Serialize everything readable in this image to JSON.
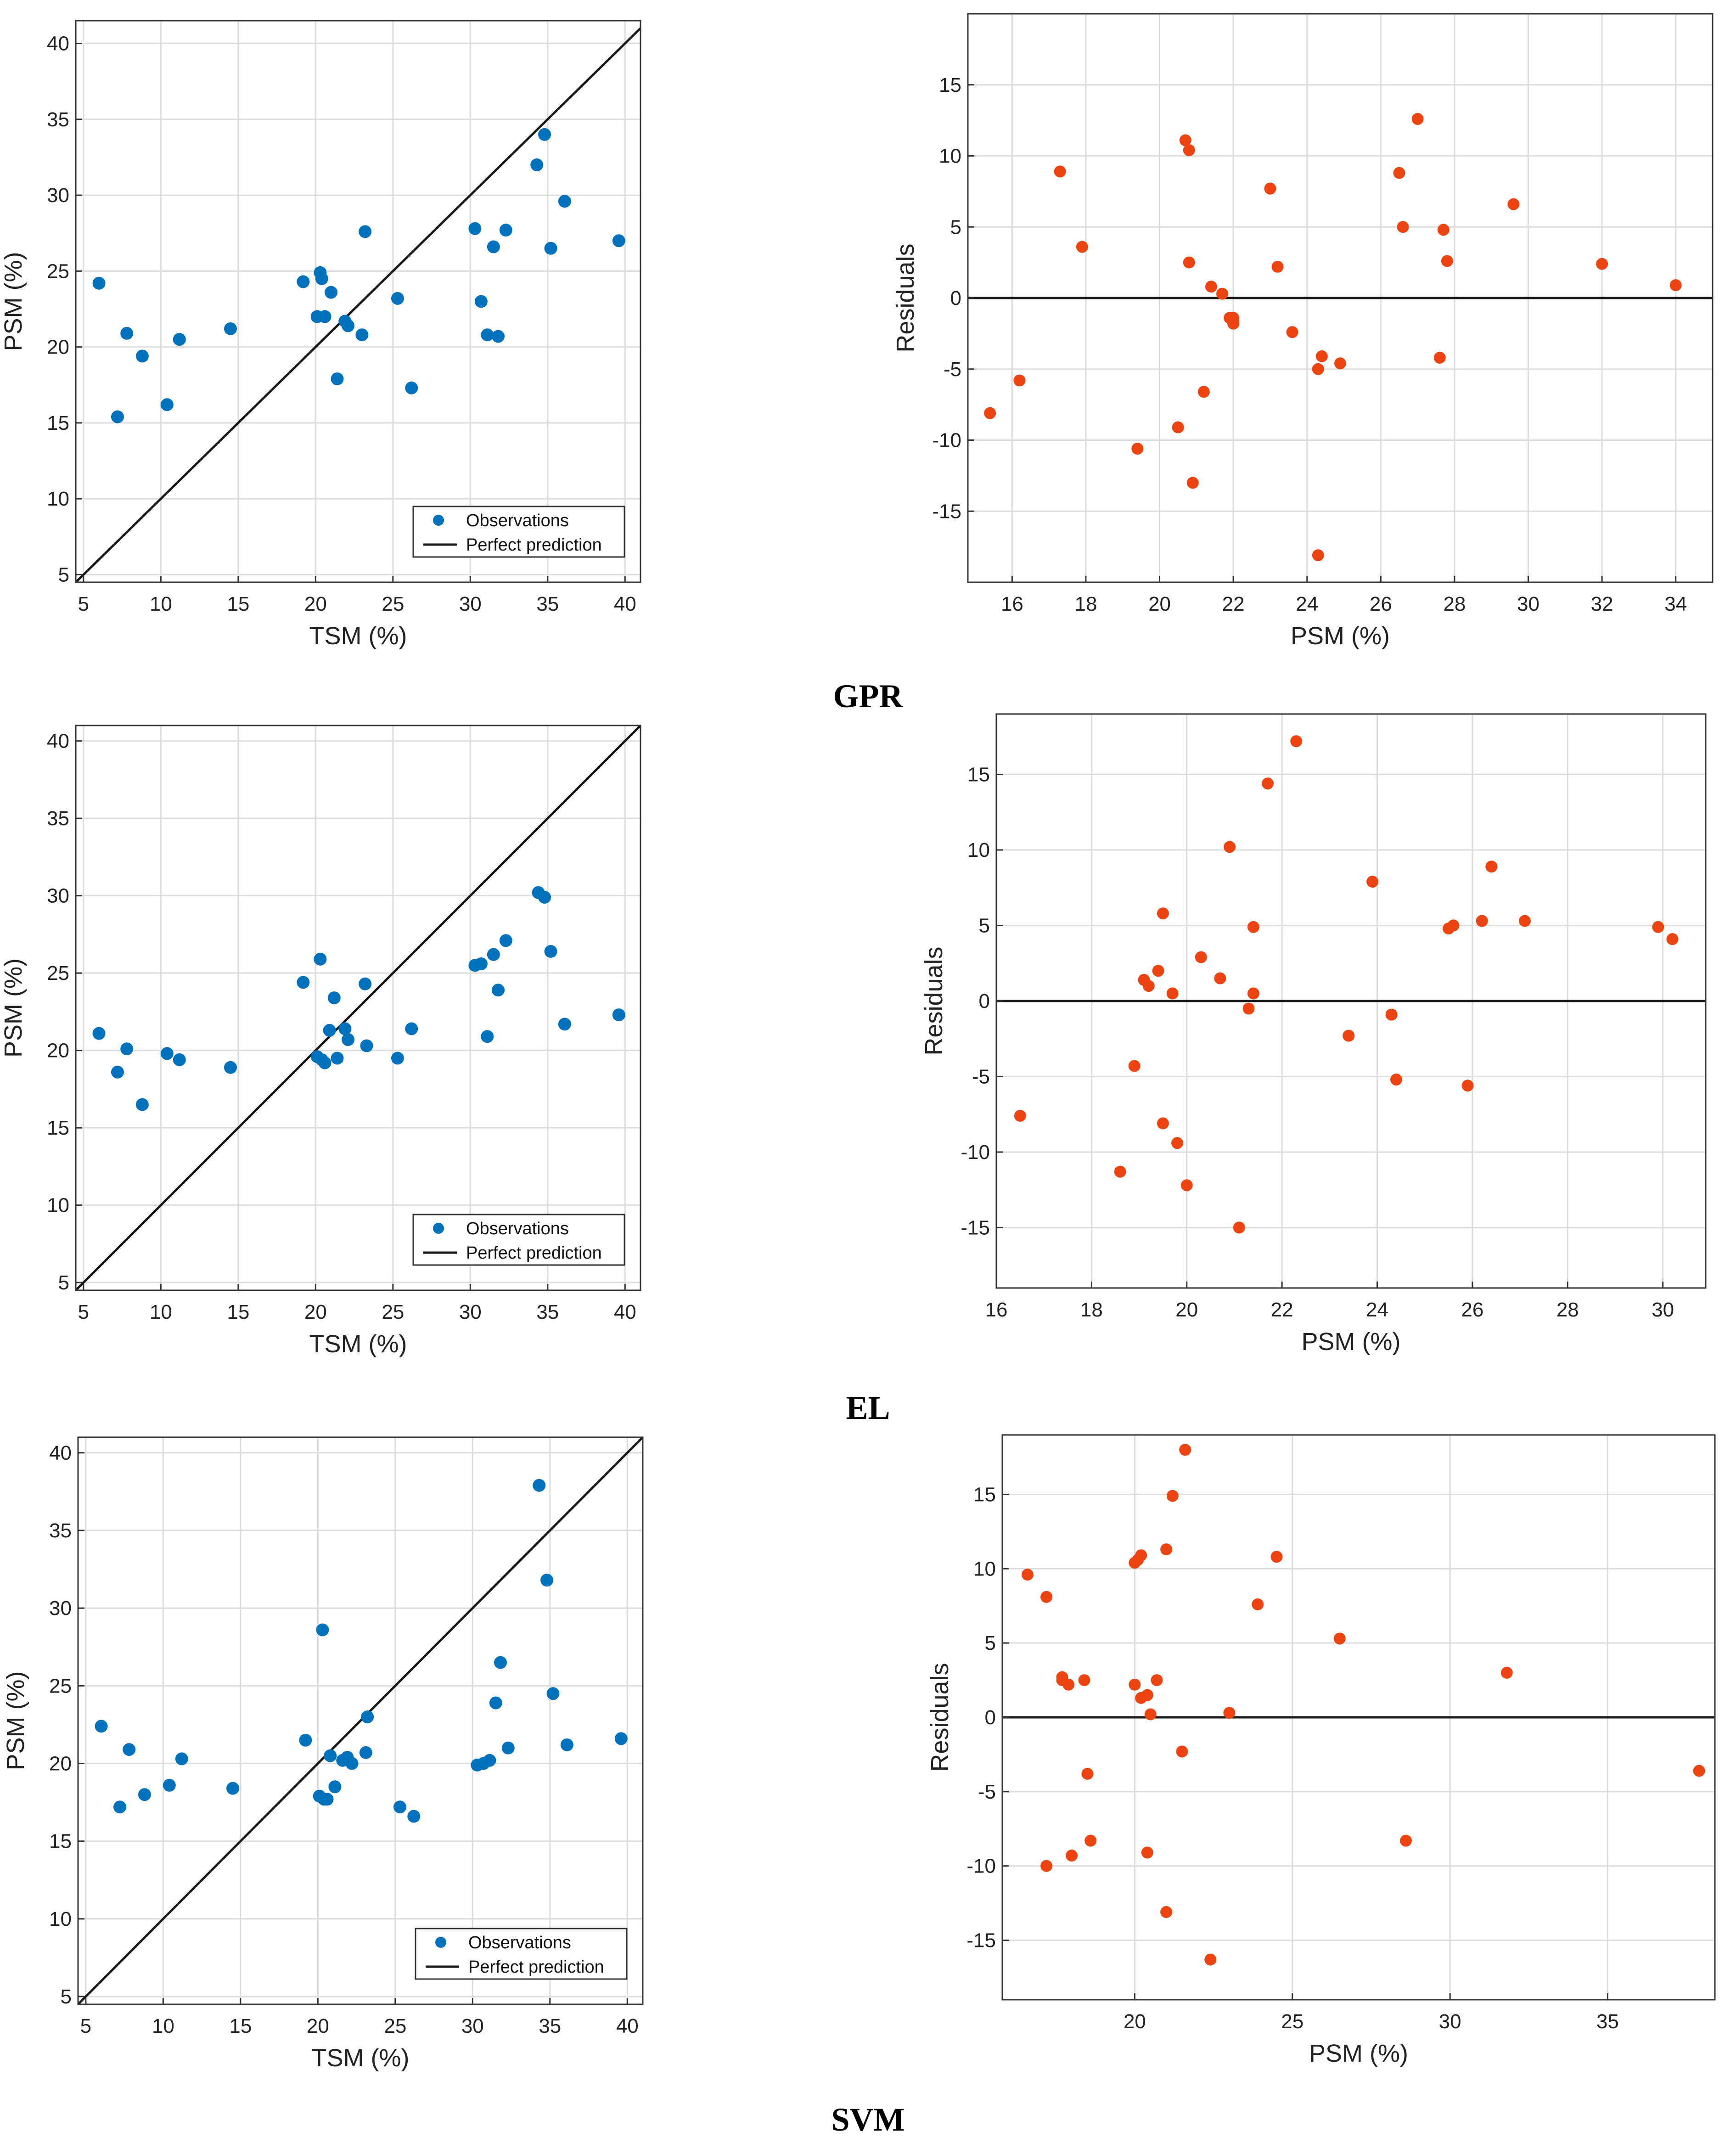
{
  "figure": {
    "row_captions": [
      "GPR",
      "EL",
      "SVM"
    ]
  },
  "colors": {
    "observation": "#0072BD",
    "residual": "#EE4411",
    "line": "#1a1a1a",
    "grid": "#dcdcdc"
  },
  "chart_data": [
    {
      "id": "gpr-scatter",
      "type": "scatter",
      "model": "GPR",
      "xlabel": "TSM (%)",
      "ylabel": "PSM (%)",
      "xlim": [
        4.5,
        41
      ],
      "ylim": [
        4.5,
        41.5
      ],
      "xticks": [
        5,
        10,
        15,
        20,
        25,
        30,
        35,
        40
      ],
      "yticks": [
        5,
        10,
        15,
        20,
        25,
        30,
        35,
        40
      ],
      "grid": true,
      "reference_line": {
        "name": "Perfect prediction",
        "from": [
          4.5,
          4.5
        ],
        "to": [
          41,
          41
        ]
      },
      "legend": {
        "placement": "bottom-right",
        "entries": [
          "Observations",
          "Perfect prediction"
        ]
      },
      "series": [
        {
          "name": "Observations",
          "x": [
            6.0,
            7.2,
            7.8,
            8.8,
            10.4,
            11.2,
            14.5,
            19.2,
            20.1,
            20.3,
            20.4,
            20.6,
            21.0,
            21.4,
            21.9,
            22.1,
            23.0,
            23.2,
            25.3,
            26.2,
            30.3,
            30.7,
            31.1,
            31.5,
            31.8,
            32.3,
            34.3,
            34.8,
            35.2,
            36.1,
            39.6
          ],
          "y": [
            24.2,
            15.4,
            20.9,
            19.4,
            16.2,
            20.5,
            21.2,
            24.3,
            22.0,
            24.9,
            24.5,
            22.0,
            23.6,
            17.9,
            21.7,
            21.4,
            20.8,
            27.6,
            23.2,
            17.3,
            27.8,
            23.0,
            20.8,
            26.6,
            20.7,
            27.7,
            32.0,
            34.0,
            26.5,
            29.6,
            27.0
          ]
        }
      ]
    },
    {
      "id": "gpr-residuals",
      "type": "scatter",
      "model": "GPR",
      "xlabel": "PSM (%)",
      "ylabel": "Residuals",
      "xlim": [
        14.8,
        35.0
      ],
      "ylim": [
        -20,
        20
      ],
      "xticks": [
        16,
        18,
        20,
        22,
        24,
        26,
        28,
        30,
        32,
        34
      ],
      "yticks": [
        -15,
        -10,
        -5,
        0,
        5,
        10,
        15
      ],
      "grid": true,
      "zero_line": true,
      "series": [
        {
          "name": "Residuals",
          "x": [
            15.4,
            16.2,
            17.3,
            17.9,
            19.4,
            20.5,
            20.7,
            20.8,
            20.8,
            20.9,
            21.2,
            21.4,
            21.7,
            21.9,
            22.0,
            22.0,
            22.0,
            23.0,
            23.2,
            23.6,
            24.3,
            24.3,
            24.4,
            24.9,
            26.5,
            26.6,
            27.0,
            27.6,
            27.7,
            27.8,
            29.6,
            32.0,
            34.0
          ],
          "y": [
            -8.1,
            -5.8,
            8.9,
            3.6,
            -10.6,
            -9.1,
            11.1,
            10.4,
            2.5,
            -13.0,
            -6.6,
            0.8,
            0.3,
            -1.4,
            -1.6,
            -1.8,
            -1.4,
            7.7,
            2.2,
            -2.4,
            -18.1,
            -5.0,
            -4.1,
            -4.6,
            8.8,
            5.0,
            12.6,
            -4.2,
            4.8,
            2.6,
            6.6,
            2.4,
            0.9
          ]
        }
      ]
    },
    {
      "id": "el-scatter",
      "type": "scatter",
      "model": "EL",
      "xlabel": "TSM (%)",
      "ylabel": "PSM (%)",
      "xlim": [
        4.5,
        41
      ],
      "ylim": [
        4.5,
        41
      ],
      "xticks": [
        5,
        10,
        15,
        20,
        25,
        30,
        35,
        40
      ],
      "yticks": [
        5,
        10,
        15,
        20,
        25,
        30,
        35,
        40
      ],
      "grid": true,
      "reference_line": {
        "name": "Perfect prediction",
        "from": [
          4.5,
          4.5
        ],
        "to": [
          41,
          41
        ]
      },
      "legend": {
        "placement": "bottom-right",
        "entries": [
          "Observations",
          "Perfect prediction"
        ]
      },
      "series": [
        {
          "name": "Observations",
          "x": [
            6.0,
            7.2,
            7.8,
            8.8,
            10.4,
            11.2,
            14.5,
            19.2,
            20.1,
            20.3,
            20.4,
            20.6,
            20.9,
            21.2,
            21.4,
            21.9,
            22.1,
            23.2,
            23.3,
            25.3,
            26.2,
            30.3,
            30.7,
            31.1,
            31.5,
            31.8,
            32.3,
            34.4,
            34.8,
            35.2,
            36.1,
            39.6
          ],
          "y": [
            21.1,
            18.6,
            20.1,
            16.5,
            19.8,
            19.4,
            18.9,
            24.4,
            19.6,
            25.9,
            19.4,
            19.2,
            21.3,
            23.4,
            19.5,
            21.4,
            20.7,
            24.3,
            20.3,
            19.5,
            21.4,
            25.5,
            25.6,
            20.9,
            26.2,
            23.9,
            27.1,
            30.2,
            29.9,
            26.4,
            21.7,
            22.3
          ]
        }
      ]
    },
    {
      "id": "el-residuals",
      "type": "scatter",
      "model": "EL",
      "xlabel": "PSM (%)",
      "ylabel": "Residuals",
      "xlim": [
        16.0,
        30.9
      ],
      "ylim": [
        -19,
        19
      ],
      "xticks": [
        16,
        18,
        20,
        22,
        24,
        26,
        28,
        30
      ],
      "yticks": [
        -15,
        -10,
        -5,
        0,
        5,
        10,
        15
      ],
      "grid": true,
      "zero_line": true,
      "series": [
        {
          "name": "Residuals",
          "x": [
            16.5,
            18.6,
            18.9,
            19.1,
            19.2,
            19.4,
            19.5,
            19.5,
            19.7,
            19.8,
            20.0,
            20.3,
            20.7,
            20.9,
            21.1,
            21.3,
            21.4,
            21.4,
            21.7,
            22.3,
            23.4,
            23.9,
            24.3,
            24.4,
            25.5,
            25.6,
            25.9,
            26.2,
            26.4,
            27.1,
            29.9,
            30.2
          ],
          "y": [
            -7.6,
            -11.3,
            -4.3,
            1.4,
            1.0,
            2.0,
            -8.1,
            5.8,
            0.5,
            -9.4,
            -12.2,
            2.9,
            1.5,
            10.2,
            -15.0,
            -0.5,
            0.5,
            4.9,
            14.4,
            17.2,
            -2.3,
            7.9,
            -0.9,
            -5.2,
            4.8,
            5.0,
            -5.6,
            5.3,
            8.9,
            5.3,
            4.9,
            4.1
          ]
        }
      ]
    },
    {
      "id": "svm-scatter",
      "type": "scatter",
      "model": "SVM",
      "xlabel": "TSM (%)",
      "ylabel": "PSM (%)",
      "xlim": [
        4.5,
        41
      ],
      "ylim": [
        4.5,
        41
      ],
      "xticks": [
        5,
        10,
        15,
        20,
        25,
        30,
        35,
        40
      ],
      "yticks": [
        5,
        10,
        15,
        20,
        25,
        30,
        35,
        40
      ],
      "grid": true,
      "reference_line": {
        "name": "Perfect prediction",
        "from": [
          4.5,
          4.5
        ],
        "to": [
          41,
          41
        ]
      },
      "legend": {
        "placement": "bottom-right",
        "entries": [
          "Observations",
          "Perfect prediction"
        ]
      },
      "series": [
        {
          "name": "Observations",
          "x": [
            6.0,
            7.2,
            7.8,
            8.8,
            10.4,
            11.2,
            14.5,
            19.2,
            20.1,
            20.3,
            20.4,
            20.6,
            20.8,
            21.1,
            21.6,
            21.9,
            22.2,
            23.1,
            23.2,
            25.3,
            26.2,
            30.3,
            30.7,
            31.1,
            31.5,
            31.8,
            32.3,
            34.3,
            34.8,
            35.2,
            36.1,
            39.6
          ],
          "y": [
            22.4,
            17.2,
            20.9,
            18.0,
            18.6,
            20.3,
            18.4,
            21.5,
            17.9,
            28.6,
            17.7,
            17.7,
            20.5,
            18.5,
            20.2,
            20.4,
            20.0,
            20.7,
            23.0,
            17.2,
            16.6,
            19.9,
            20.0,
            20.2,
            23.9,
            26.5,
            21.0,
            37.9,
            31.8,
            24.5,
            21.2,
            21.6
          ]
        }
      ]
    },
    {
      "id": "svm-residuals",
      "type": "scatter",
      "model": "SVM",
      "xlabel": "PSM (%)",
      "ylabel": "Residuals",
      "xlim": [
        15.8,
        38.4
      ],
      "ylim": [
        -19,
        19
      ],
      "xticks": [
        20,
        25,
        30,
        35
      ],
      "yticks": [
        -15,
        -10,
        -5,
        0,
        5,
        10,
        15
      ],
      "grid": true,
      "zero_line": true,
      "series": [
        {
          "name": "Residuals",
          "x": [
            16.6,
            17.2,
            17.2,
            17.7,
            17.7,
            17.9,
            18.0,
            18.4,
            18.5,
            18.6,
            20.0,
            20.0,
            20.1,
            20.2,
            20.2,
            20.4,
            20.4,
            20.5,
            20.7,
            21.0,
            21.0,
            21.2,
            21.5,
            21.6,
            22.4,
            23.0,
            23.9,
            24.5,
            26.5,
            28.6,
            31.8,
            37.9
          ],
          "y": [
            9.6,
            8.1,
            -10.0,
            2.7,
            2.5,
            2.2,
            -9.3,
            2.5,
            -3.8,
            -8.3,
            10.4,
            2.2,
            10.6,
            1.3,
            10.9,
            1.5,
            -9.1,
            0.2,
            2.5,
            11.3,
            -13.1,
            14.9,
            -2.3,
            18.0,
            -16.3,
            0.3,
            7.6,
            10.8,
            5.3,
            -8.3,
            3.0,
            -3.6
          ]
        }
      ]
    }
  ]
}
